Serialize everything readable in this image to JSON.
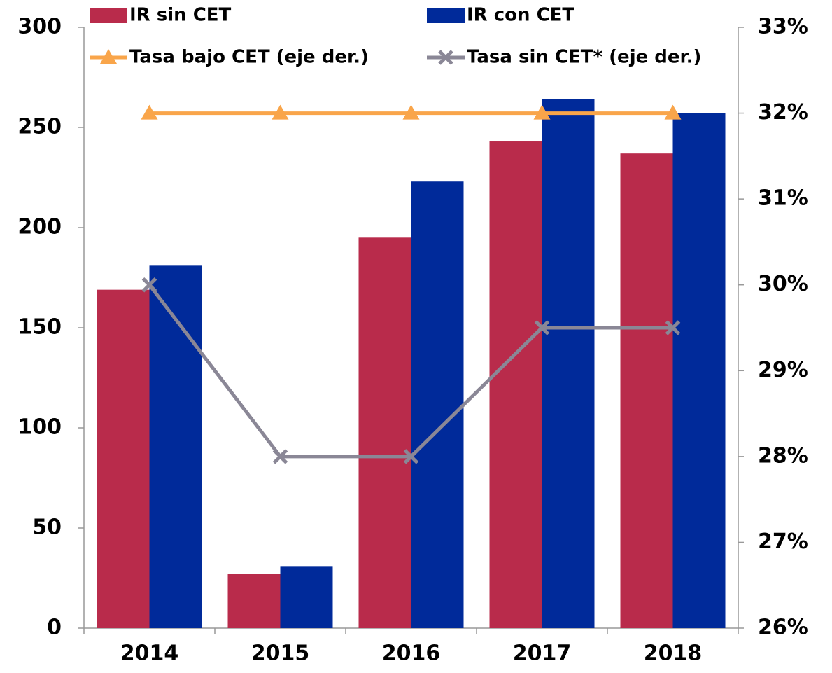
{
  "chart_data": {
    "type": "bar",
    "categories": [
      "2014",
      "2015",
      "2016",
      "2017",
      "2018"
    ],
    "series": [
      {
        "name": "IR sin CET",
        "type": "bar",
        "color": "#b92b4b",
        "values": [
          169,
          27,
          195,
          243,
          237
        ]
      },
      {
        "name": "IR con CET",
        "type": "bar",
        "color": "#002a9a",
        "values": [
          181,
          31,
          223,
          264,
          257
        ]
      },
      {
        "name": "Tasa bajo CET (eje der.)",
        "type": "line",
        "axis": "y2",
        "marker": "triangle",
        "color": "#f9a54a",
        "values": [
          32,
          32,
          32,
          32,
          32
        ]
      },
      {
        "name": "Tasa sin CET* (eje der.)",
        "type": "line",
        "axis": "y2",
        "marker": "x",
        "color": "#8a8796",
        "values": [
          30,
          28,
          28,
          29.5,
          29.5
        ]
      }
    ],
    "ylim": [
      0,
      300
    ],
    "yticks": [
      0,
      50,
      100,
      150,
      200,
      250,
      300
    ],
    "y2lim": [
      26,
      33
    ],
    "y2ticks": [
      {
        "value": 26,
        "label": "26%"
      },
      {
        "value": 27,
        "label": "27%"
      },
      {
        "value": 28,
        "label": "28%"
      },
      {
        "value": 29,
        "label": "29%"
      },
      {
        "value": 30,
        "label": "30%"
      },
      {
        "value": 31,
        "label": "31%"
      },
      {
        "value": 32,
        "label": "32%"
      },
      {
        "value": 33,
        "label": "33%"
      }
    ],
    "legend": "top",
    "grid": false
  }
}
